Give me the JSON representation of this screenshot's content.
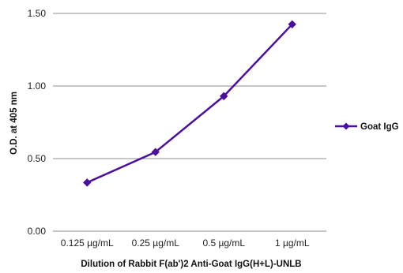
{
  "chart_data": {
    "type": "line",
    "categories": [
      "0.125 µg/mL",
      "0.25 µg/mL",
      "0.5 µg/mL",
      "1 µg/mL"
    ],
    "series": [
      {
        "name": "Goat IgG",
        "values": [
          0.335,
          0.545,
          0.93,
          1.425
        ],
        "color": "#4b0fa0"
      }
    ],
    "yticks": [
      "0.00",
      "0.50",
      "1.00",
      "1.50"
    ],
    "ylim": [
      0,
      1.5
    ],
    "ylabel": "O.D. at 405 nm",
    "xlabel": "Dilution of Rabbit F(ab')2 Anti-Goat IgG(H+L)-UNLB",
    "grid": "horizontal",
    "legend_position": "right",
    "marker": "diamond"
  }
}
